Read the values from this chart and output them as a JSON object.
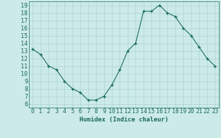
{
  "x": [
    0,
    1,
    2,
    3,
    4,
    5,
    6,
    7,
    8,
    9,
    10,
    11,
    12,
    13,
    14,
    15,
    16,
    17,
    18,
    19,
    20,
    21,
    22,
    23
  ],
  "y": [
    13.2,
    12.5,
    11.0,
    10.5,
    9.0,
    8.0,
    7.5,
    6.5,
    6.5,
    7.0,
    8.5,
    10.5,
    13.0,
    14.0,
    18.2,
    18.2,
    19.0,
    18.0,
    17.5,
    16.0,
    15.0,
    13.5,
    12.0,
    11.0
  ],
  "xlabel": "Humidex (Indice chaleur)",
  "line_color": "#1a6b5a",
  "marker_color": "#1a6b5a",
  "bg_color": "#cceae8",
  "grid_color": "#aad4d0",
  "text_color": "#1a6b5a",
  "ylim": [
    5.5,
    19.5
  ],
  "xlim": [
    -0.5,
    23.5
  ],
  "yticks": [
    6,
    7,
    8,
    9,
    10,
    11,
    12,
    13,
    14,
    15,
    16,
    17,
    18,
    19
  ],
  "xticks": [
    0,
    1,
    2,
    3,
    4,
    5,
    6,
    7,
    8,
    9,
    10,
    11,
    12,
    13,
    14,
    15,
    16,
    17,
    18,
    19,
    20,
    21,
    22,
    23
  ],
  "xlabel_fontsize": 6.5,
  "tick_fontsize": 6.0
}
